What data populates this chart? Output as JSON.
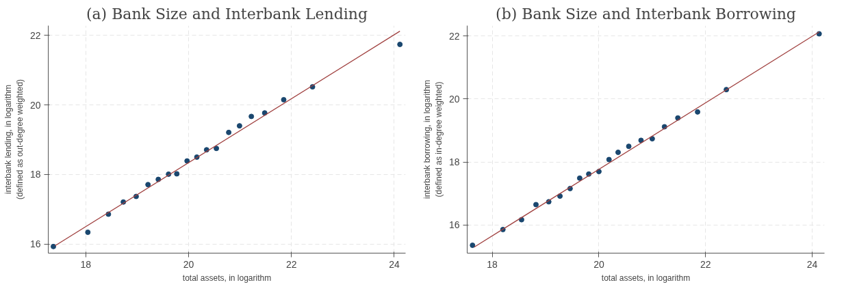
{
  "chart_data": [
    {
      "type": "scatter",
      "title": "(a) Bank Size and Interbank Lending",
      "xlabel": "total assets, in logarithm",
      "ylabel": "interbank lending, in logarithm\n(defined as out-degree weighted)",
      "xlim": [
        17.27,
        24.22
      ],
      "ylim": [
        15.74,
        22.28
      ],
      "xticks": [
        18,
        20,
        22,
        24
      ],
      "yticks": [
        16,
        18,
        20,
        22
      ],
      "grid": true,
      "series": [
        {
          "marker": "circle",
          "color": "#1a476f",
          "x": [
            17.37,
            18.04,
            18.44,
            18.73,
            18.98,
            19.21,
            19.41,
            19.61,
            19.77,
            19.97,
            20.16,
            20.35,
            20.54,
            20.78,
            20.99,
            21.22,
            21.48,
            21.85,
            22.41,
            24.11
          ],
          "values": [
            15.93,
            16.34,
            16.86,
            17.21,
            17.37,
            17.71,
            17.86,
            18.01,
            18.02,
            18.39,
            18.5,
            18.71,
            18.75,
            19.21,
            19.4,
            19.67,
            19.77,
            20.15,
            20.52,
            21.74
          ]
        },
        {
          "type": "line",
          "color": "#a0403f",
          "x": [
            17.4,
            24.11
          ],
          "values": [
            15.95,
            22.12
          ]
        }
      ]
    },
    {
      "type": "scatter",
      "title": "(b) Bank Size and Interbank Borrowing",
      "xlabel": "total assets, in logarithm",
      "ylabel": "interbank borrowing, in logarithm\n(defined as in-degree weighted)",
      "xlim": [
        17.53,
        24.23
      ],
      "ylim": [
        15.11,
        22.33
      ],
      "xticks": [
        18,
        20,
        22,
        24
      ],
      "yticks": [
        16,
        18,
        20,
        22
      ],
      "grid": true,
      "series": [
        {
          "marker": "circle",
          "color": "#1a476f",
          "x": [
            17.63,
            18.2,
            18.55,
            18.82,
            19.06,
            19.27,
            19.46,
            19.64,
            19.81,
            20.0,
            20.19,
            20.36,
            20.56,
            20.79,
            21.0,
            21.23,
            21.48,
            21.85,
            22.39,
            24.13
          ],
          "values": [
            15.36,
            15.86,
            16.17,
            16.65,
            16.74,
            16.92,
            17.16,
            17.49,
            17.62,
            17.7,
            18.08,
            18.31,
            18.5,
            18.69,
            18.74,
            19.12,
            19.4,
            19.59,
            20.3,
            22.07
          ]
        },
        {
          "type": "line",
          "color": "#a0403f",
          "x": [
            17.66,
            24.13
          ],
          "values": [
            15.3,
            22.13
          ]
        }
      ]
    }
  ]
}
